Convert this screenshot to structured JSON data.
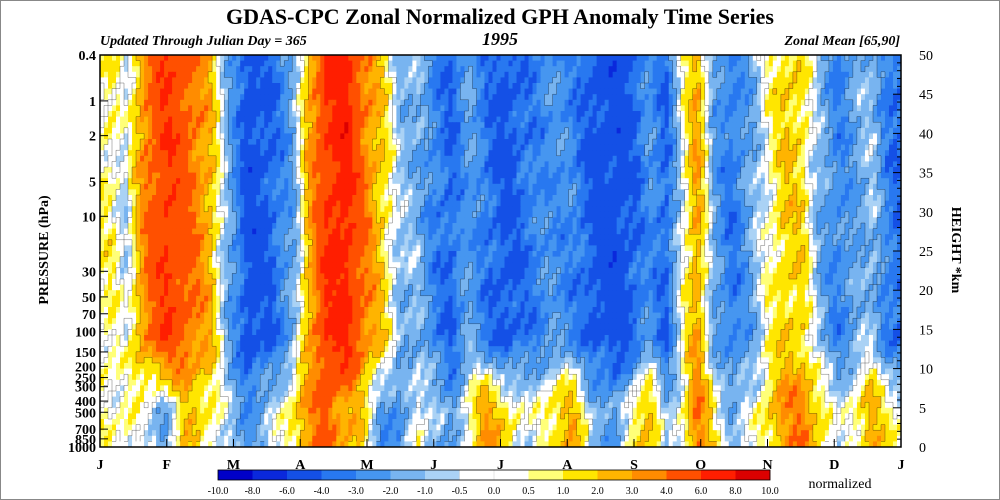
{
  "chart_data": {
    "type": "heatmap",
    "title": "GDAS-CPC Zonal Normalized GPH Anomaly Time Series",
    "subtitle_left": "Updated Through Julian Day = 365",
    "subtitle_center": "1995",
    "subtitle_right": "Zonal Mean [65,90]",
    "ylabel_left": "PRESSURE (hPa)",
    "ylabel_right": "HEIGHT *km",
    "pressure_ticks": [
      "0.4",
      "1",
      "2",
      "5",
      "10",
      "30",
      "50",
      "70",
      "100",
      "150",
      "200",
      "250",
      "300",
      "400",
      "500",
      "700",
      "850",
      "1000"
    ],
    "pressure_values": [
      0.4,
      1,
      2,
      5,
      10,
      30,
      50,
      70,
      100,
      150,
      200,
      250,
      300,
      400,
      500,
      700,
      850,
      1000
    ],
    "pressure_scale": "log",
    "height_ticks": [
      "50",
      "45",
      "40",
      "35",
      "30",
      "25",
      "20",
      "15",
      "10",
      "5",
      "0"
    ],
    "height_values": [
      50,
      45,
      40,
      35,
      30,
      25,
      20,
      15,
      10,
      5,
      0
    ],
    "month_ticks": [
      "J",
      "F",
      "M",
      "A",
      "M",
      "J",
      "J",
      "A",
      "S",
      "O",
      "N",
      "D",
      "J"
    ],
    "legend_labels": [
      "-10.0",
      "-8.0",
      "-6.0",
      "-4.0",
      "-3.0",
      "-2.0",
      "-1.0",
      "-0.5",
      "0.0",
      "0.5",
      "1.0",
      "2.0",
      "3.0",
      "4.0",
      "6.0",
      "8.0",
      "10.0"
    ],
    "legend_colors": [
      "#0000c8",
      "#0a28dc",
      "#1450e6",
      "#2878f0",
      "#4696f0",
      "#78b4f0",
      "#aad2f5",
      "#ffffff",
      "#ffffff",
      "#ffff78",
      "#ffe600",
      "#ffb400",
      "#ff8c00",
      "#ff5000",
      "#ff1e00",
      "#dc0000"
    ],
    "legend_unit": "normalized",
    "time_profile": [
      {
        "day": 0,
        "strat": 0.5,
        "trop": 0.3
      },
      {
        "day": 5,
        "strat": 0.8,
        "trop": 0.5
      },
      {
        "day": 12,
        "strat": -0.5,
        "trop": 0.6
      },
      {
        "day": 20,
        "strat": 3.5,
        "trop": -0.3
      },
      {
        "day": 30,
        "strat": 6.0,
        "trop": -1.5
      },
      {
        "day": 40,
        "strat": 4.5,
        "trop": 2.0
      },
      {
        "day": 50,
        "strat": 2.5,
        "trop": 1.0
      },
      {
        "day": 58,
        "strat": -1.5,
        "trop": -0.8
      },
      {
        "day": 68,
        "strat": -5.0,
        "trop": -2.5
      },
      {
        "day": 78,
        "strat": -4.0,
        "trop": -1.0
      },
      {
        "day": 88,
        "strat": -2.0,
        "trop": 1.5
      },
      {
        "day": 95,
        "strat": 2.5,
        "trop": 3.0
      },
      {
        "day": 103,
        "strat": 6.0,
        "trop": 5.0
      },
      {
        "day": 112,
        "strat": 7.0,
        "trop": 2.5
      },
      {
        "day": 120,
        "strat": 4.0,
        "trop": 1.5
      },
      {
        "day": 128,
        "strat": 2.0,
        "trop": -2.0
      },
      {
        "day": 136,
        "strat": -1.0,
        "trop": -3.0
      },
      {
        "day": 145,
        "strat": -1.5,
        "trop": 0.5
      },
      {
        "day": 152,
        "strat": -3.0,
        "trop": -1.0
      },
      {
        "day": 160,
        "strat": -4.0,
        "trop": -2.5
      },
      {
        "day": 168,
        "strat": -2.0,
        "trop": 0.8
      },
      {
        "day": 176,
        "strat": -3.5,
        "trop": 3.0
      },
      {
        "day": 185,
        "strat": -4.5,
        "trop": 1.5
      },
      {
        "day": 195,
        "strat": -3.5,
        "trop": -0.8
      },
      {
        "day": 205,
        "strat": -2.5,
        "trop": 1.5
      },
      {
        "day": 215,
        "strat": -3.0,
        "trop": 2.5
      },
      {
        "day": 225,
        "strat": -4.5,
        "trop": -1.0
      },
      {
        "day": 235,
        "strat": -5.0,
        "trop": -2.5
      },
      {
        "day": 244,
        "strat": -4.0,
        "trop": 1.5
      },
      {
        "day": 250,
        "strat": -2.5,
        "trop": 2.5
      },
      {
        "day": 258,
        "strat": -4.0,
        "trop": -1.5
      },
      {
        "day": 266,
        "strat": 0.3,
        "trop": 0.8
      },
      {
        "day": 272,
        "strat": 3.0,
        "trop": 4.0
      },
      {
        "day": 280,
        "strat": -2.0,
        "trop": 1.0
      },
      {
        "day": 288,
        "strat": -3.5,
        "trop": -1.5
      },
      {
        "day": 296,
        "strat": -2.0,
        "trop": -0.5
      },
      {
        "day": 304,
        "strat": 0.2,
        "trop": 1.5
      },
      {
        "day": 312,
        "strat": 1.8,
        "trop": 3.0
      },
      {
        "day": 320,
        "strat": 1.5,
        "trop": 4.0
      },
      {
        "day": 328,
        "strat": -1.5,
        "trop": 1.5
      },
      {
        "day": 336,
        "strat": -3.0,
        "trop": -0.8
      },
      {
        "day": 344,
        "strat": -2.0,
        "trop": 1.0
      },
      {
        "day": 352,
        "strat": -1.0,
        "trop": 2.5
      },
      {
        "day": 358,
        "strat": -3.0,
        "trop": 1.0
      },
      {
        "day": 365,
        "strat": -4.0,
        "trop": 0.5
      }
    ]
  }
}
